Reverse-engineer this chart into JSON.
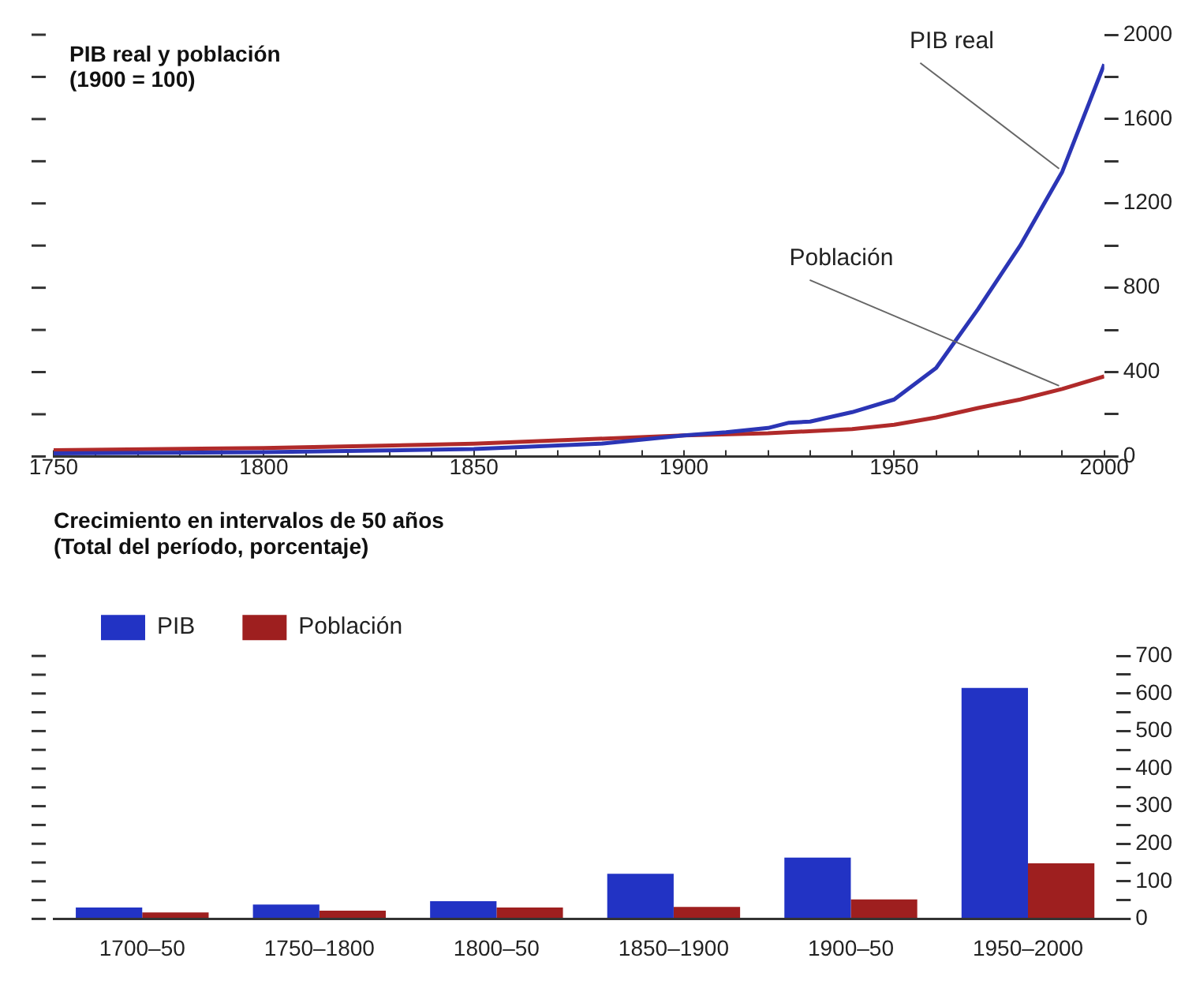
{
  "chart_data": [
    {
      "type": "line",
      "title": "PIB real y población",
      "subtitle": "(1900 = 100)",
      "xlim": [
        1750,
        2000
      ],
      "xticks": [
        1750,
        {
          "value": 1760,
          "label": null
        },
        {
          "value": 1770,
          "label": null
        },
        {
          "value": 1780,
          "label": null
        },
        {
          "value": 1790,
          "label": null
        },
        1800,
        {
          "value": 1810,
          "label": null
        },
        {
          "value": 1820,
          "label": null
        },
        {
          "value": 1830,
          "label": null
        },
        {
          "value": 1840,
          "label": null
        },
        1850,
        {
          "value": 1860,
          "label": null
        },
        {
          "value": 1870,
          "label": null
        },
        {
          "value": 1880,
          "label": null
        },
        {
          "value": 1890,
          "label": null
        },
        1900,
        {
          "value": 1910,
          "label": null
        },
        {
          "value": 1920,
          "label": null
        },
        {
          "value": 1930,
          "label": null
        },
        {
          "value": 1940,
          "label": null
        },
        1950,
        {
          "value": 1960,
          "label": null
        },
        {
          "value": 1970,
          "label": null
        },
        {
          "value": 1980,
          "label": null
        },
        {
          "value": 1990,
          "label": null
        },
        2000
      ],
      "ylim": [
        0,
        2000
      ],
      "yticks": [
        0,
        {
          "value": 200,
          "label": null
        },
        400,
        {
          "value": 600,
          "label": null
        },
        800,
        {
          "value": 1000,
          "label": null
        },
        1200,
        {
          "value": 1400,
          "label": null
        },
        1600,
        {
          "value": 1800,
          "label": null
        },
        2000
      ],
      "grid": false,
      "legend": false,
      "series": [
        {
          "name": "PIB real",
          "color": "#2b35b5",
          "x": [
            1750,
            1800,
            1850,
            1880,
            1900,
            1910,
            1920,
            1925,
            1930,
            1940,
            1950,
            1960,
            1970,
            1980,
            1990,
            2000
          ],
          "values": [
            15,
            20,
            35,
            60,
            100,
            115,
            135,
            160,
            165,
            210,
            270,
            420,
            700,
            1000,
            1350,
            1860
          ]
        },
        {
          "name": "Población",
          "color": "#b02a2a",
          "x": [
            1750,
            1800,
            1850,
            1900,
            1920,
            1940,
            1950,
            1960,
            1970,
            1980,
            1990,
            2000
          ],
          "values": [
            30,
            40,
            60,
            100,
            110,
            130,
            150,
            185,
            230,
            270,
            320,
            380
          ]
        }
      ]
    },
    {
      "type": "bar",
      "title": "Crecimiento en intervalos de 50 años",
      "subtitle": "(Total del período, porcentaje)",
      "categories": [
        "1700–50",
        "1750–1800",
        "1800–50",
        "1850–1900",
        "1900–50",
        "1950–2000"
      ],
      "ylim": [
        0,
        700
      ],
      "yticks": [
        0,
        {
          "value": 50,
          "label": null
        },
        100,
        {
          "value": 150,
          "label": null
        },
        200,
        {
          "value": 250,
          "label": null
        },
        300,
        {
          "value": 350,
          "label": null
        },
        400,
        {
          "value": 450,
          "label": null
        },
        500,
        {
          "value": 550,
          "label": null
        },
        600,
        {
          "value": 650,
          "label": null
        },
        700
      ],
      "grid": false,
      "legend": "top left",
      "series": [
        {
          "name": "PIB",
          "color": "#2233c4",
          "values": [
            30,
            38,
            47,
            120,
            163,
            615
          ]
        },
        {
          "name": "Población",
          "color": "#9e1f1f",
          "values": [
            17,
            22,
            30,
            32,
            52,
            148
          ]
        }
      ]
    }
  ]
}
